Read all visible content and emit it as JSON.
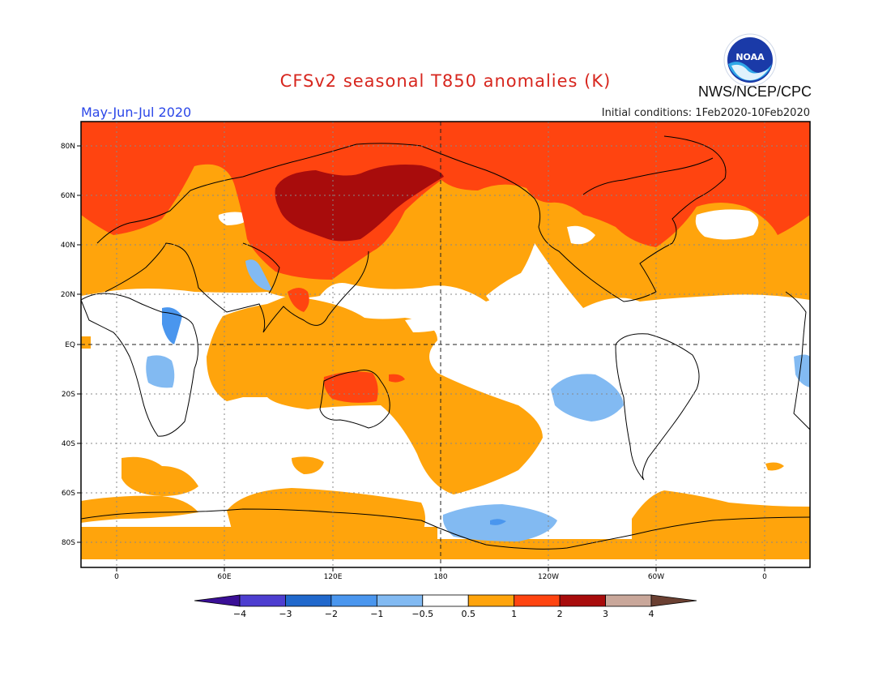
{
  "title": "CFSv2 seasonal T850 anomalies (K)",
  "season": "May-Jun-Jul 2020",
  "organization": "NWS/NCEP/CPC",
  "initial_conditions": "Initial conditions: 1Feb2020-10Feb2020",
  "logo": {
    "text": "NOAA",
    "icon": "noaa-logo-icon"
  },
  "lat_labels": [
    "80N",
    "60N",
    "40N",
    "20N",
    "EQ",
    "20S",
    "40S",
    "60S",
    "80S"
  ],
  "lon_labels": [
    "0",
    "60E",
    "120E",
    "180",
    "120W",
    "60W",
    "0"
  ],
  "colorbar": {
    "labels": [
      "-4",
      "-3",
      "-2",
      "-1",
      "-0.5",
      "0.5",
      "1",
      "2",
      "3",
      "4"
    ],
    "colors": [
      "#3a0f96",
      "#4d3ed0",
      "#2068cc",
      "#4a96ee",
      "#82baf2",
      "#ffffff",
      "#ffa40c",
      "#ff4410",
      "#a80c0c",
      "#c9a79a",
      "#6b4032"
    ]
  },
  "colors": {
    "warm_1": "#ffa40c",
    "warm_2": "#ff4410",
    "warm_3": "#a80c0c",
    "cool_1": "#82baf2",
    "cool_2": "#4a96ee"
  }
}
